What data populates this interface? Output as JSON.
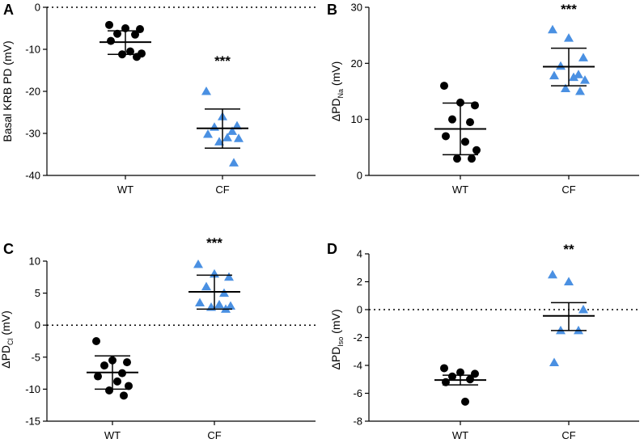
{
  "chart_data": [
    {
      "panel": "A",
      "type": "scatter",
      "ylabel": "Basal KRB PD (mV)",
      "ylabel_parts": [
        "Basal KRB PD (mV)"
      ],
      "categories": [
        "WT",
        "CF"
      ],
      "ylim": [
        -40,
        0
      ],
      "yticks": [
        0,
        -10,
        -20,
        -30,
        -40
      ],
      "reference_line": 0,
      "significance": "***",
      "significance_over": "CF",
      "series": [
        {
          "name": "WT",
          "marker": "circle",
          "color": "#000000",
          "values": [
            -4.2,
            -5.0,
            -5.2,
            -6.3,
            -6.5,
            -8.0,
            -10.5,
            -11.0,
            -11.2,
            -11.8
          ],
          "mean": -8.3,
          "error_upper": -5.6,
          "error_lower": -11.2
        },
        {
          "name": "CF",
          "marker": "triangle",
          "color": "#4a90e2",
          "values": [
            -20.0,
            -26.0,
            -28.2,
            -28.5,
            -29.5,
            -30.2,
            -31.0,
            -31.2,
            -32.0,
            -37.0
          ],
          "mean": -28.8,
          "error_upper": -24.2,
          "error_lower": -33.5
        }
      ]
    },
    {
      "panel": "B",
      "type": "scatter",
      "ylabel": "ΔPDNa (mV)",
      "ylabel_parts": [
        "ΔPD",
        "Na",
        " (mV)"
      ],
      "categories": [
        "WT",
        "CF"
      ],
      "ylim": [
        0,
        30
      ],
      "yticks": [
        0,
        10,
        20,
        30
      ],
      "reference_line": null,
      "significance": "***",
      "significance_over": "CF",
      "series": [
        {
          "name": "WT",
          "marker": "circle",
          "color": "#000000",
          "values": [
            16.0,
            13.0,
            12.5,
            10.0,
            9.5,
            7.0,
            6.0,
            4.5,
            3.0,
            3.0
          ],
          "mean": 8.3,
          "error_upper": 12.9,
          "error_lower": 3.7
        },
        {
          "name": "CF",
          "marker": "triangle",
          "color": "#4a90e2",
          "values": [
            26.0,
            24.5,
            21.0,
            19.5,
            18.0,
            17.8,
            17.5,
            17.0,
            15.5,
            15.0
          ],
          "mean": 19.4,
          "error_upper": 22.7,
          "error_lower": 16.0
        }
      ]
    },
    {
      "panel": "C",
      "type": "scatter",
      "ylabel": "ΔPDCl (mV)",
      "ylabel_parts": [
        "ΔPD",
        "Cl",
        " (mV)"
      ],
      "categories": [
        "WT",
        "CF"
      ],
      "ylim": [
        -15,
        10
      ],
      "yticks": [
        10,
        5,
        0,
        -5,
        -10,
        -15
      ],
      "reference_line": 0,
      "significance": "***",
      "significance_over": "CF",
      "series": [
        {
          "name": "WT",
          "marker": "circle",
          "color": "#000000",
          "values": [
            -2.5,
            -5.5,
            -5.8,
            -6.3,
            -7.5,
            -8.0,
            -8.8,
            -9.5,
            -10.2,
            -11.0
          ],
          "mean": -7.4,
          "error_upper": -4.8,
          "error_lower": -10.0
        },
        {
          "name": "CF",
          "marker": "triangle",
          "color": "#4a90e2",
          "values": [
            9.5,
            8.0,
            7.5,
            6.0,
            5.0,
            3.5,
            3.2,
            3.0,
            2.8,
            2.5
          ],
          "mean": 5.2,
          "error_upper": 7.8,
          "error_lower": 2.5
        }
      ]
    },
    {
      "panel": "D",
      "type": "scatter",
      "ylabel": "ΔPDIso (mV)",
      "ylabel_parts": [
        "ΔPD",
        "Iso",
        " (mV)"
      ],
      "categories": [
        "WT",
        "CF"
      ],
      "ylim": [
        -8,
        4
      ],
      "yticks": [
        4,
        2,
        0,
        -2,
        -4,
        -6,
        -8
      ],
      "reference_line": 0,
      "significance": "**",
      "significance_over": "CF",
      "series": [
        {
          "name": "WT",
          "marker": "circle",
          "color": "#000000",
          "values": [
            -4.2,
            -4.5,
            -4.6,
            -4.8,
            -5.0,
            -5.2,
            -6.6
          ],
          "mean": -5.05,
          "error_upper": -4.7,
          "error_lower": -5.4
        },
        {
          "name": "CF",
          "marker": "triangle",
          "color": "#4a90e2",
          "values": [
            2.5,
            2.0,
            0.0,
            -1.5,
            -1.5,
            -3.8
          ],
          "mean": -0.45,
          "error_upper": 0.5,
          "error_lower": -1.5
        }
      ]
    }
  ]
}
